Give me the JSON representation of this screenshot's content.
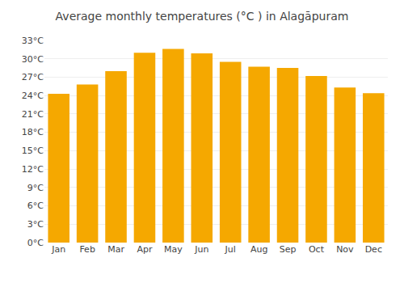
{
  "chart_data": {
    "type": "bar",
    "title": "Average monthly temperatures (°C ) in Alagāpuram",
    "categories": [
      "Jan",
      "Feb",
      "Mar",
      "Apr",
      "May",
      "Jun",
      "Jul",
      "Aug",
      "Sep",
      "Oct",
      "Nov",
      "Dec"
    ],
    "values": [
      24.3,
      25.8,
      28.0,
      31.0,
      31.6,
      30.9,
      29.5,
      28.7,
      28.5,
      27.2,
      25.3,
      24.4
    ],
    "color": "#F5A800",
    "ylim": [
      0,
      33
    ],
    "yticks": [
      {
        "value": 0,
        "label": "0°C"
      },
      {
        "value": 3,
        "label": "3°C"
      },
      {
        "value": 6,
        "label": "6°C"
      },
      {
        "value": 9,
        "label": "9°C"
      },
      {
        "value": 12,
        "label": "12°C"
      },
      {
        "value": 15,
        "label": "15°C"
      },
      {
        "value": 18,
        "label": "18°C"
      },
      {
        "value": 21,
        "label": "21°C"
      },
      {
        "value": 24,
        "label": "24°C"
      },
      {
        "value": 27,
        "label": "27°C"
      },
      {
        "value": 30,
        "label": "30°C"
      },
      {
        "value": 33,
        "label": "33°C"
      }
    ],
    "grid": true
  }
}
